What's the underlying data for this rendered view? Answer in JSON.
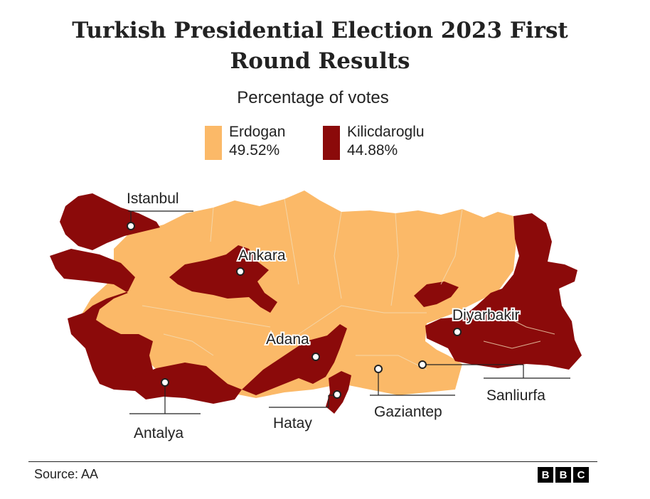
{
  "title": "Turkish Presidential Election 2023 First Round Results",
  "subtitle": "Percentage of votes",
  "legend": [
    {
      "name": "Erdogan",
      "value": "49.52%",
      "color": "#fbb968"
    },
    {
      "name": "Kilicdaroglu",
      "value": "44.88%",
      "color": "#8b0a0a"
    }
  ],
  "cities": [
    {
      "name": "Istanbul"
    },
    {
      "name": "Ankara"
    },
    {
      "name": "Adana"
    },
    {
      "name": "Diyarbakir"
    },
    {
      "name": "Antalya"
    },
    {
      "name": "Hatay"
    },
    {
      "name": "Gaziantep"
    },
    {
      "name": "Sanliurfa"
    }
  ],
  "source": "Source: AA",
  "logo": [
    "B",
    "B",
    "C"
  ],
  "colors": {
    "border": "#f3dcb6",
    "text": "#222222"
  }
}
